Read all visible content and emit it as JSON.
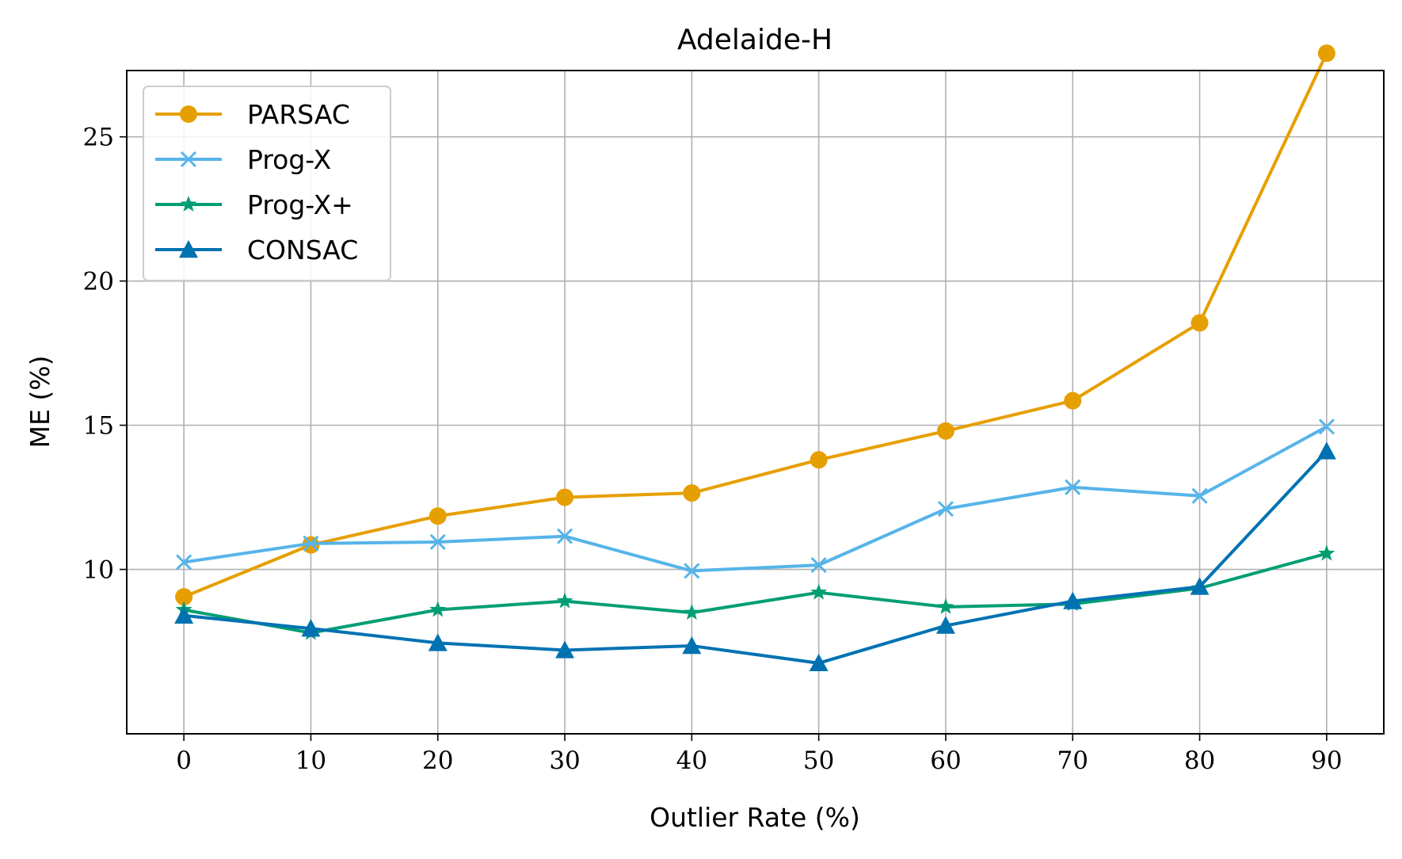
{
  "chart_data": {
    "type": "line",
    "title": "Adelaide-H",
    "xlabel": "Outlier Rate (%)",
    "ylabel": "ME (%)",
    "x": [
      0,
      10,
      20,
      30,
      40,
      50,
      60,
      70,
      80,
      90
    ],
    "xticks": [
      "0",
      "10",
      "20",
      "30",
      "40",
      "50",
      "60",
      "70",
      "80",
      "90"
    ],
    "yticks": [
      "10",
      "15",
      "20",
      "25"
    ],
    "ytick_values": [
      10,
      15,
      20,
      25
    ],
    "xlim": [
      -4.5,
      94.5
    ],
    "ylim": [
      4.3,
      27.3
    ],
    "grid": true,
    "legend_position": "top-left",
    "series": [
      {
        "name": "PARSAC",
        "color": "#E69F00",
        "marker": "circle",
        "values": [
          9.05,
          10.85,
          11.85,
          12.5,
          12.65,
          13.8,
          14.8,
          15.85,
          18.55,
          27.9
        ]
      },
      {
        "name": "Prog-X",
        "color": "#56B4E9",
        "marker": "x",
        "values": [
          10.25,
          10.9,
          10.95,
          11.15,
          9.95,
          10.15,
          12.1,
          12.85,
          12.55,
          14.95
        ]
      },
      {
        "name": "Prog-X+",
        "color": "#009E73",
        "marker": "star",
        "values": [
          8.6,
          7.8,
          8.6,
          8.9,
          8.5,
          9.2,
          8.7,
          8.8,
          9.35,
          10.55
        ]
      },
      {
        "name": "CONSAC",
        "color": "#0072B2",
        "marker": "triangle",
        "values": [
          8.4,
          7.95,
          7.45,
          7.2,
          7.35,
          6.75,
          8.05,
          8.9,
          9.4,
          14.1
        ]
      }
    ]
  }
}
